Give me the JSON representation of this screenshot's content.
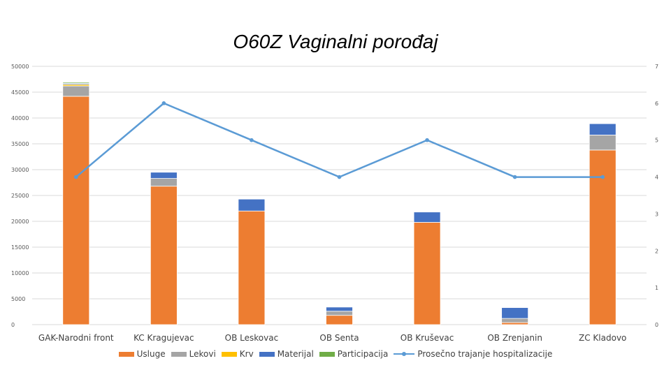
{
  "chart_data": {
    "type": "bar",
    "stacked": true,
    "title": "O60Z Vaginalni porođaj",
    "categories": [
      "GAK-Narodni front",
      "KC Kragujevac",
      "OB Leskovac",
      "OB Senta",
      "OB Kruševac",
      "OB Zrenjanin",
      "ZC Kladovo"
    ],
    "series": [
      {
        "name": "Usluge",
        "color": "#ed7d31",
        "values": [
          44200,
          26800,
          22000,
          1800,
          19800,
          400,
          33800
        ]
      },
      {
        "name": "Lekovi",
        "color": "#a5a5a5",
        "values": [
          2000,
          1500,
          0,
          800,
          0,
          800,
          2900
        ]
      },
      {
        "name": "Krv",
        "color": "#ffc000",
        "values": [
          300,
          0,
          0,
          0,
          0,
          0,
          0
        ]
      },
      {
        "name": "Materijal",
        "color": "#4472c4",
        "values": [
          200,
          1200,
          2300,
          800,
          2000,
          2100,
          2200
        ]
      },
      {
        "name": "Participacija",
        "color": "#70ad47",
        "values": [
          200,
          0,
          0,
          0,
          0,
          0,
          0
        ]
      }
    ],
    "line_series": {
      "name": "Prosečno trajanje hospitalizacije",
      "color": "#5b9bd5",
      "axis": "right",
      "values": [
        4,
        6,
        5,
        4,
        5,
        4,
        4
      ]
    },
    "y_left": {
      "min": 0,
      "max": 50000,
      "ticks": [
        "0",
        "5000",
        "10000",
        "15000",
        "20000",
        "25000",
        "30000",
        "35000",
        "40000",
        "45000",
        "50000"
      ]
    },
    "y_right": {
      "min": 0,
      "max": 7,
      "ticks": [
        "0",
        "1",
        "2",
        "3",
        "4",
        "5",
        "6",
        "7"
      ]
    },
    "grid": true,
    "legend_position": "bottom"
  }
}
